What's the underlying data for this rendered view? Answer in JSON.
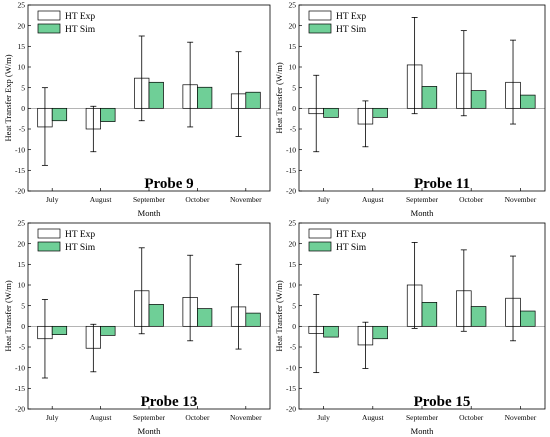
{
  "colors": {
    "exp_fill": "#ffffff",
    "sim_fill": "#6fcf97",
    "stroke": "#000000",
    "zero_line": "#888888"
  },
  "chart_data": [
    {
      "type": "bar",
      "title": "Probe 9",
      "xlabel": "Month",
      "ylabel": "Heat Transfer Exp (W/m)",
      "ylim": [
        -20,
        25
      ],
      "yticks": [
        -20,
        -15,
        -10,
        -5,
        0,
        5,
        10,
        15,
        20,
        25
      ],
      "grid": false,
      "legend_position": "top-left",
      "categories": [
        "July",
        "August",
        "September",
        "October",
        "November"
      ],
      "series": [
        {
          "name": "HT Exp",
          "values": [
            -4.5,
            -5.0,
            7.3,
            5.7,
            3.5
          ],
          "error_low": [
            -13.8,
            -10.5,
            -3.0,
            -4.5,
            -6.8
          ],
          "error_high": [
            5.0,
            0.5,
            17.5,
            16.0,
            13.7
          ]
        },
        {
          "name": "HT Sim",
          "values": [
            -3.0,
            -3.2,
            6.3,
            5.1,
            3.9
          ]
        }
      ]
    },
    {
      "type": "bar",
      "title": "Probe 11",
      "xlabel": "Month",
      "ylabel": "Heat Transfer (W/m)",
      "ylim": [
        -20,
        25
      ],
      "yticks": [
        -20,
        -15,
        -10,
        -5,
        0,
        5,
        10,
        15,
        20,
        25
      ],
      "grid": false,
      "legend_position": "top-left",
      "categories": [
        "July",
        "August",
        "September",
        "October",
        "November"
      ],
      "series": [
        {
          "name": "HT Exp",
          "values": [
            -1.3,
            -3.8,
            10.5,
            8.5,
            6.3
          ],
          "error_low": [
            -10.5,
            -9.3,
            -1.3,
            -1.8,
            -3.8
          ],
          "error_high": [
            8.0,
            1.8,
            22.0,
            18.8,
            16.5
          ]
        },
        {
          "name": "HT Sim",
          "values": [
            -2.2,
            -2.2,
            5.3,
            4.3,
            3.2
          ]
        }
      ]
    },
    {
      "type": "bar",
      "title": "Probe 13",
      "xlabel": "Month",
      "ylabel": "Heat Transfer (W/m)",
      "ylim": [
        -20,
        25
      ],
      "yticks": [
        -20,
        -15,
        -10,
        -5,
        0,
        5,
        10,
        15,
        20,
        25
      ],
      "grid": false,
      "legend_position": "top-left",
      "categories": [
        "July",
        "August",
        "September",
        "October",
        "November"
      ],
      "series": [
        {
          "name": "HT Exp",
          "values": [
            -3.0,
            -5.3,
            8.6,
            7.0,
            4.7
          ],
          "error_low": [
            -12.5,
            -11.0,
            -1.8,
            -3.5,
            -5.5
          ],
          "error_high": [
            6.5,
            0.5,
            19.0,
            17.2,
            15.0
          ]
        },
        {
          "name": "HT Sim",
          "values": [
            -2.0,
            -2.2,
            5.3,
            4.3,
            3.2
          ]
        }
      ]
    },
    {
      "type": "bar",
      "title": "Probe 15",
      "xlabel": "Month",
      "ylabel": "Heat Transfer (W/m)",
      "ylim": [
        -20,
        25
      ],
      "yticks": [
        -20,
        -15,
        -10,
        -5,
        0,
        5,
        10,
        15,
        20,
        25
      ],
      "grid": false,
      "legend_position": "top-left",
      "categories": [
        "July",
        "August",
        "September",
        "October",
        "November"
      ],
      "series": [
        {
          "name": "HT Exp",
          "values": [
            -1.7,
            -4.5,
            10.0,
            8.6,
            6.8
          ],
          "error_low": [
            -11.2,
            -10.2,
            -0.5,
            -1.2,
            -3.5
          ],
          "error_high": [
            7.7,
            1.0,
            20.3,
            18.5,
            17.0
          ]
        },
        {
          "name": "HT Sim",
          "values": [
            -2.6,
            -3.0,
            5.8,
            4.8,
            3.7
          ]
        }
      ]
    }
  ]
}
